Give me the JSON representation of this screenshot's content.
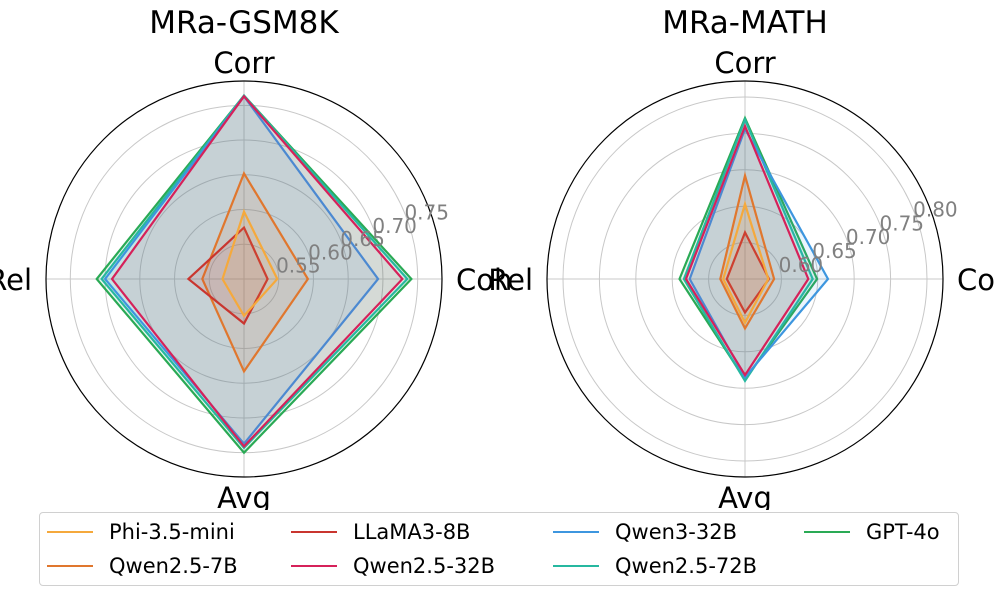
{
  "chart_data": [
    {
      "type": "radar",
      "title": "MRa-GSM8K",
      "axes": [
        "Corr",
        "Coh",
        "Avg",
        "Rel"
      ],
      "rlim": [
        0.5,
        0.785
      ],
      "rticks": [
        "0.55",
        "0.60",
        "0.65",
        "0.70",
        "0.75"
      ],
      "series": [
        {
          "name": "Phi-3.5-mini",
          "values": [
            0.597,
            0.548,
            0.553,
            0.531
          ]
        },
        {
          "name": "LLaMA3-8B",
          "values": [
            0.574,
            0.534,
            0.564,
            0.58
          ]
        },
        {
          "name": "Qwen2.5-7B",
          "values": [
            0.652,
            0.592,
            0.633,
            0.56
          ]
        },
        {
          "name": "Qwen2.5-32B",
          "values": [
            0.763,
            0.728,
            0.741,
            0.69
          ]
        },
        {
          "name": "Qwen3-32B",
          "values": [
            0.763,
            0.693,
            0.737,
            0.7
          ]
        },
        {
          "name": "Qwen2.5-72B",
          "values": [
            0.764,
            0.735,
            0.743,
            0.705
          ]
        },
        {
          "name": "GPT-4o",
          "values": [
            0.764,
            0.741,
            0.75,
            0.712
          ]
        }
      ]
    },
    {
      "type": "radar",
      "title": "MRa-MATH",
      "axes": [
        "Corr",
        "Coh",
        "Avg",
        "Rel"
      ],
      "rlim": [
        0.55,
        0.822
      ],
      "rticks": [
        "0.60",
        "0.65",
        "0.70",
        "0.75",
        "0.80"
      ],
      "series": [
        {
          "name": "Phi-3.5-mini",
          "values": [
            0.653,
            0.582,
            0.61,
            0.58
          ]
        },
        {
          "name": "LLaMA3-8B",
          "values": [
            0.614,
            0.583,
            0.596,
            0.575
          ]
        },
        {
          "name": "Qwen2.5-7B",
          "values": [
            0.692,
            0.59,
            0.618,
            0.584
          ]
        },
        {
          "name": "Qwen2.5-32B",
          "values": [
            0.76,
            0.637,
            0.682,
            0.631
          ]
        },
        {
          "name": "Qwen3-32B",
          "values": [
            0.756,
            0.664,
            0.685,
            0.626
          ]
        },
        {
          "name": "Qwen2.5-72B",
          "values": [
            0.769,
            0.643,
            0.69,
            0.634
          ]
        },
        {
          "name": "GPT-4o",
          "values": [
            0.771,
            0.649,
            0.688,
            0.64
          ]
        }
      ]
    }
  ],
  "series_colors": {
    "Phi-3.5-mini": "#f5a93c",
    "Qwen2.5-7B": "#e0772e",
    "LLaMA3-8B": "#c9352f",
    "Qwen2.5-32B": "#d6215a",
    "Qwen3-32B": "#3d96df",
    "Qwen2.5-72B": "#26b8a0",
    "GPT-4o": "#2aaa55"
  },
  "legend": {
    "placement": "bottom",
    "items": [
      "Phi-3.5-mini",
      "Qwen2.5-7B",
      "LLaMA3-8B",
      "Qwen2.5-32B",
      "Qwen3-32B",
      "Qwen2.5-72B",
      "GPT-4o"
    ]
  }
}
